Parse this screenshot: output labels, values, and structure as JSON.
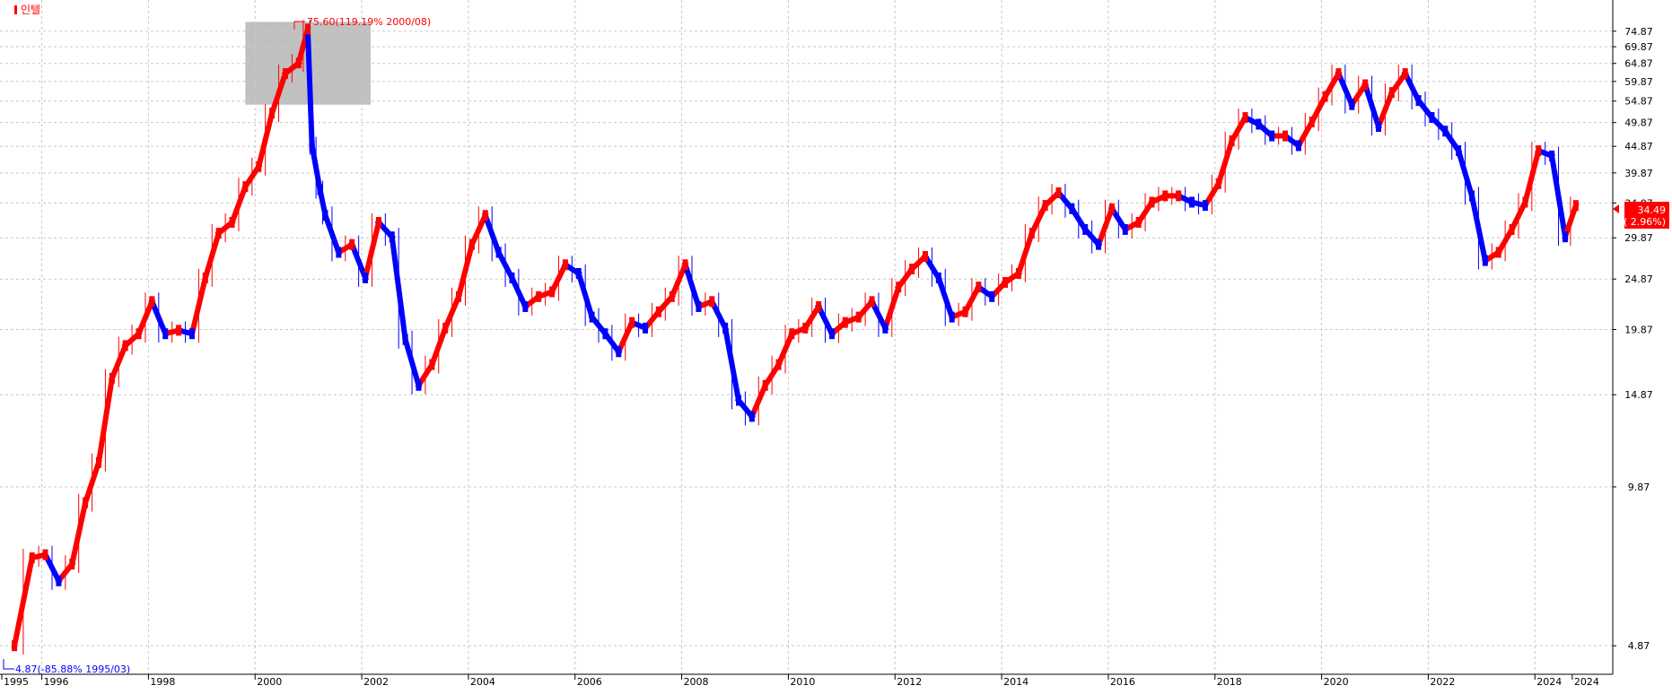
{
  "legend": {
    "label": "인텔",
    "color": "#ff0000"
  },
  "colors": {
    "up": "#ff0000",
    "down": "#0000ff",
    "grid": "#c8c8c8",
    "axis": "#000000",
    "highlight": "#c0c0c0"
  },
  "high_annotation": {
    "text": "75.60(119.19% 2000/08)",
    "color": "#ff0000"
  },
  "low_annotation": {
    "text": "4.87(-85.88% 1995/03)",
    "color": "#0000ff"
  },
  "current_price": {
    "value": "34.49",
    "change": "(  2.96%)",
    "color": "#ff0000"
  },
  "chart_data": {
    "type": "candlestick-line",
    "title": "",
    "xlabel": "",
    "ylabel": "",
    "y_scale": "log",
    "ylim": [
      4.5,
      78
    ],
    "xlim": [
      1995.0,
      2024.2
    ],
    "grid": true,
    "y_ticks": [
      "74.87",
      "69.87",
      "64.87",
      "59.87",
      "54.87",
      "49.87",
      "44.87",
      "39.87",
      "34.87",
      "29.87",
      "24.87",
      "19.87",
      "14.87",
      "9.87",
      "4.87"
    ],
    "x_ticks": [
      "1995",
      "1996",
      "1998",
      "2000",
      "2002",
      "2004",
      "2006",
      "2008",
      "2010",
      "2012",
      "2014",
      "2016",
      "2018",
      "2020",
      "2022",
      "2024",
      "2024"
    ],
    "highlight_range": {
      "x": [
        1999.5,
        2001.85
      ],
      "y": [
        54.0,
        78.0
      ]
    },
    "series": [
      {
        "points": [
          [
            1995.17,
            4.87
          ],
          [
            1995.5,
            7.2
          ],
          [
            1995.75,
            7.3
          ],
          [
            1996.0,
            6.5
          ],
          [
            1996.25,
            7.0
          ],
          [
            1996.5,
            9.2
          ],
          [
            1996.75,
            11.0
          ],
          [
            1997.0,
            16.0
          ],
          [
            1997.25,
            18.5
          ],
          [
            1997.5,
            19.5
          ],
          [
            1997.75,
            22.5
          ],
          [
            1998.0,
            19.5
          ],
          [
            1998.25,
            19.8
          ],
          [
            1998.5,
            19.5
          ],
          [
            1998.75,
            25.0
          ],
          [
            1999.0,
            30.5
          ],
          [
            1999.25,
            32.0
          ],
          [
            1999.5,
            37.5
          ],
          [
            1999.75,
            41.0
          ],
          [
            2000.0,
            52.0
          ],
          [
            2000.25,
            62.0
          ],
          [
            2000.5,
            65.0
          ],
          [
            2000.67,
            75.6
          ],
          [
            2000.75,
            45.0
          ],
          [
            2000.9,
            37.0
          ],
          [
            2001.0,
            33.0
          ],
          [
            2001.25,
            28.0
          ],
          [
            2001.5,
            29.0
          ],
          [
            2001.75,
            25.0
          ],
          [
            2002.0,
            32.0
          ],
          [
            2002.25,
            30.0
          ],
          [
            2002.5,
            19.0
          ],
          [
            2002.75,
            15.5
          ],
          [
            2003.0,
            17.0
          ],
          [
            2003.25,
            20.0
          ],
          [
            2003.5,
            23.0
          ],
          [
            2003.75,
            29.0
          ],
          [
            2004.0,
            33.0
          ],
          [
            2004.25,
            28.0
          ],
          [
            2004.5,
            25.0
          ],
          [
            2004.75,
            22.0
          ],
          [
            2005.0,
            23.0
          ],
          [
            2005.25,
            23.5
          ],
          [
            2005.5,
            26.5
          ],
          [
            2005.75,
            25.5
          ],
          [
            2006.0,
            21.0
          ],
          [
            2006.25,
            19.5
          ],
          [
            2006.5,
            18.0
          ],
          [
            2006.75,
            20.5
          ],
          [
            2007.0,
            20.0
          ],
          [
            2007.25,
            21.5
          ],
          [
            2007.5,
            23.0
          ],
          [
            2007.75,
            26.5
          ],
          [
            2008.0,
            22.0
          ],
          [
            2008.25,
            22.5
          ],
          [
            2008.5,
            20.0
          ],
          [
            2008.75,
            14.5
          ],
          [
            2009.0,
            13.5
          ],
          [
            2009.25,
            15.5
          ],
          [
            2009.5,
            17.0
          ],
          [
            2009.75,
            19.5
          ],
          [
            2010.0,
            20.0
          ],
          [
            2010.25,
            22.0
          ],
          [
            2010.5,
            19.5
          ],
          [
            2010.75,
            20.5
          ],
          [
            2011.0,
            21.0
          ],
          [
            2011.25,
            22.5
          ],
          [
            2011.5,
            20.0
          ],
          [
            2011.75,
            24.0
          ],
          [
            2012.0,
            26.0
          ],
          [
            2012.25,
            27.5
          ],
          [
            2012.5,
            25.0
          ],
          [
            2012.75,
            21.0
          ],
          [
            2013.0,
            21.5
          ],
          [
            2013.25,
            24.0
          ],
          [
            2013.5,
            23.0
          ],
          [
            2013.75,
            24.5
          ],
          [
            2014.0,
            25.5
          ],
          [
            2014.25,
            30.5
          ],
          [
            2014.5,
            34.5
          ],
          [
            2014.75,
            36.5
          ],
          [
            2015.0,
            34.0
          ],
          [
            2015.25,
            31.0
          ],
          [
            2015.5,
            29.0
          ],
          [
            2015.75,
            34.0
          ],
          [
            2016.0,
            31.0
          ],
          [
            2016.25,
            32.0
          ],
          [
            2016.5,
            35.0
          ],
          [
            2016.75,
            36.0
          ],
          [
            2017.0,
            36.0
          ],
          [
            2017.25,
            35.0
          ],
          [
            2017.5,
            34.5
          ],
          [
            2017.75,
            38.0
          ],
          [
            2018.0,
            46.0
          ],
          [
            2018.25,
            51.0
          ],
          [
            2018.5,
            49.5
          ],
          [
            2018.75,
            47.0
          ],
          [
            2019.0,
            47.0
          ],
          [
            2019.25,
            45.0
          ],
          [
            2019.5,
            50.0
          ],
          [
            2019.75,
            56.0
          ],
          [
            2020.0,
            62.0
          ],
          [
            2020.25,
            54.0
          ],
          [
            2020.5,
            59.0
          ],
          [
            2020.75,
            49.0
          ],
          [
            2021.0,
            57.0
          ],
          [
            2021.25,
            62.0
          ],
          [
            2021.5,
            55.0
          ],
          [
            2021.75,
            51.0
          ],
          [
            2022.0,
            48.0
          ],
          [
            2022.25,
            44.0
          ],
          [
            2022.5,
            36.0
          ],
          [
            2022.75,
            27.0
          ],
          [
            2023.0,
            28.0
          ],
          [
            2023.25,
            31.0
          ],
          [
            2023.5,
            35.0
          ],
          [
            2023.75,
            44.0
          ],
          [
            2024.0,
            43.0
          ],
          [
            2024.25,
            30.0
          ],
          [
            2024.45,
            34.49
          ]
        ]
      }
    ]
  }
}
